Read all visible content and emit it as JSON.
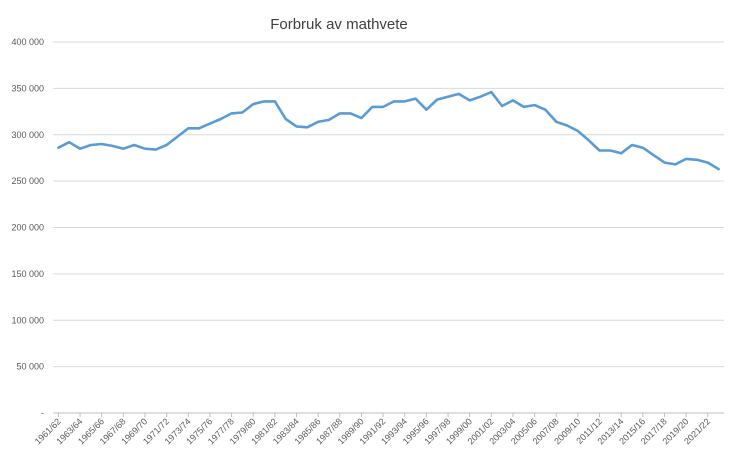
{
  "colors": {
    "series": "#5b9bd5",
    "grid": "#d9d9d9",
    "text": "#595959"
  },
  "chart_data": {
    "type": "line",
    "title": "Forbruk av mathvete",
    "xlabel": "",
    "ylabel": "",
    "ylim": [
      0,
      400000
    ],
    "grid": true,
    "legend": "none",
    "yticks": [
      {
        "value": 0,
        "label": "-"
      },
      {
        "value": 50000,
        "label": "50 000"
      },
      {
        "value": 100000,
        "label": "100 000"
      },
      {
        "value": 150000,
        "label": "150 000"
      },
      {
        "value": 200000,
        "label": "200 000"
      },
      {
        "value": 250000,
        "label": "250 000"
      },
      {
        "value": 300000,
        "label": "300 000"
      },
      {
        "value": 350000,
        "label": "350 000"
      },
      {
        "value": 400000,
        "label": "400 000"
      }
    ],
    "categories": [
      "1961/62",
      "1962/63",
      "1963/64",
      "1964/65",
      "1965/66",
      "1966/67",
      "1967/68",
      "1968/69",
      "1969/70",
      "1970/71",
      "1971/72",
      "1972/73",
      "1973/74",
      "1974/75",
      "1975/76",
      "1976/77",
      "1977/78",
      "1978/79",
      "1979/80",
      "1980/81",
      "1981/82",
      "1982/83",
      "1983/84",
      "1984/85",
      "1985/86",
      "1986/87",
      "1987/88",
      "1988/89",
      "1989/90",
      "1990/91",
      "1991/92",
      "1992/93",
      "1993/94",
      "1994/95",
      "1995/96",
      "1996/97",
      "1997/98",
      "1998/99",
      "1999/00",
      "2000/01",
      "2001/02",
      "2002/03",
      "2003/04",
      "2004/05",
      "2005/06",
      "2006/07",
      "2007/08",
      "2008/09",
      "2009/10",
      "2010/11",
      "2011/12",
      "2012/13",
      "2013/14",
      "2014/15",
      "2015/16",
      "2016/17",
      "2017/18",
      "2018/19",
      "2019/20",
      "2020/21",
      "2021/22",
      "2022/23"
    ],
    "xtick_labels": [
      "1961/62",
      "1963/64",
      "1965/66",
      "1967/68",
      "1969/70",
      "1971/72",
      "1973/74",
      "1975/76",
      "1977/78",
      "1979/80",
      "1981/82",
      "1983/84",
      "1985/86",
      "1987/88",
      "1989/90",
      "1991/92",
      "1993/94",
      "1995/96",
      "1997/98",
      "1999/00",
      "2001/02",
      "2003/04",
      "2005/06",
      "2007/08",
      "2009/10",
      "2011/12",
      "2013/14",
      "2015/16",
      "2017/18",
      "2019/20",
      "2021/22"
    ],
    "series": [
      {
        "values": [
          286000,
          292000,
          285000,
          289000,
          290000,
          288000,
          285000,
          289000,
          285000,
          284000,
          289000,
          298000,
          307000,
          307000,
          312000,
          317000,
          323000,
          324000,
          333000,
          336000,
          336000,
          317000,
          309000,
          308000,
          314000,
          316000,
          323000,
          323000,
          318000,
          330000,
          330000,
          336000,
          336000,
          339000,
          327000,
          338000,
          341000,
          344000,
          337000,
          341000,
          346000,
          331000,
          337000,
          330000,
          332000,
          327000,
          314000,
          310000,
          304000,
          294000,
          283000,
          283000,
          280000,
          289000,
          286000,
          278000,
          270000,
          268000,
          274000,
          273000,
          270000,
          263000
        ]
      }
    ]
  }
}
